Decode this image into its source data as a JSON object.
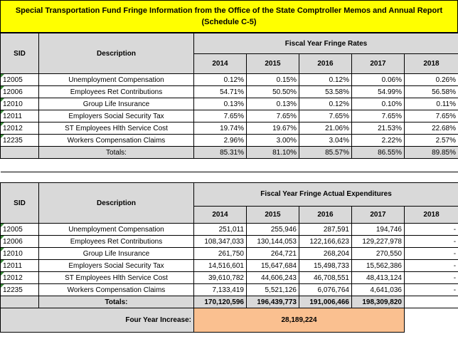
{
  "title_line1": "Special Transportation Fund Fringe Information from the Office of the State Comptroller Memos and Annual Report",
  "title_line2": "(Schedule C-5)",
  "rates": {
    "sid_header": "SID",
    "desc_header": "Description",
    "group_header": "Fiscal Year Fringe Rates",
    "years": [
      "2014",
      "2015",
      "2016",
      "2017",
      "2018"
    ],
    "rows": [
      {
        "sid": "12005",
        "desc": "Unemployment Compensation",
        "vals": [
          "0.12%",
          "0.15%",
          "0.12%",
          "0.06%",
          "0.26%"
        ]
      },
      {
        "sid": "12006",
        "desc": "Employees Ret Contributions",
        "vals": [
          "54.71%",
          "50.50%",
          "53.58%",
          "54.99%",
          "56.58%"
        ]
      },
      {
        "sid": "12010",
        "desc": "Group Life Insurance",
        "vals": [
          "0.13%",
          "0.13%",
          "0.12%",
          "0.10%",
          "0.11%"
        ]
      },
      {
        "sid": "12011",
        "desc": "Employers Social Security Tax",
        "vals": [
          "7.65%",
          "7.65%",
          "7.65%",
          "7.65%",
          "7.65%"
        ]
      },
      {
        "sid": "12012",
        "desc": "ST Employees Hlth Service Cost",
        "vals": [
          "19.74%",
          "19.67%",
          "21.06%",
          "21.53%",
          "22.68%"
        ]
      },
      {
        "sid": "12235",
        "desc": "Workers Compensation Claims",
        "vals": [
          "2.96%",
          "3.00%",
          "3.04%",
          "2.22%",
          "2.57%"
        ]
      }
    ],
    "totals_label": "Totals:",
    "totals": [
      "85.31%",
      "81.10%",
      "85.57%",
      "86.55%",
      "89.85%"
    ]
  },
  "exp": {
    "sid_header": "SID",
    "desc_header": "Description",
    "group_header": "Fiscal Year Fringe Actual Expenditures",
    "years": [
      "2014",
      "2015",
      "2016",
      "2017",
      "2018"
    ],
    "rows": [
      {
        "sid": "12005",
        "desc": "Unemployment Compensation",
        "vals": [
          "251,011",
          "255,946",
          "287,591",
          "194,746",
          "-"
        ]
      },
      {
        "sid": "12006",
        "desc": "Employees Ret Contributions",
        "vals": [
          "108,347,033",
          "130,144,053",
          "122,166,623",
          "129,227,978",
          "-"
        ]
      },
      {
        "sid": "12010",
        "desc": "Group Life Insurance",
        "vals": [
          "261,750",
          "264,721",
          "268,204",
          "270,550",
          "-"
        ]
      },
      {
        "sid": "12011",
        "desc": "Employers Social Security Tax",
        "vals": [
          "14,516,601",
          "15,647,684",
          "15,498,733",
          "15,562,386",
          "-"
        ]
      },
      {
        "sid": "12012",
        "desc": "ST Employees Hlth Service Cost",
        "vals": [
          "39,610,782",
          "44,606,243",
          "46,708,551",
          "48,413,124",
          "-"
        ]
      },
      {
        "sid": "12235",
        "desc": "Workers Compensation Claims",
        "vals": [
          "7,133,419",
          "5,521,126",
          "6,076,764",
          "4,641,036",
          "-"
        ]
      }
    ],
    "totals_label": "Totals:",
    "totals": [
      "170,120,596",
      "196,439,773",
      "191,006,466",
      "198,309,820",
      ""
    ]
  },
  "increase_label": "Four Year Increase:",
  "increase_value": "28,189,224"
}
